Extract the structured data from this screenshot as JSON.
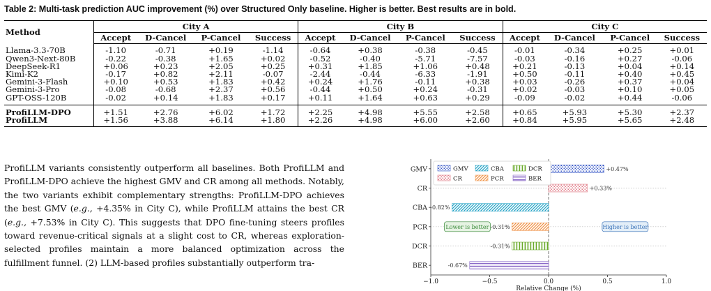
{
  "caption": "Table 2: Multi-task prediction AUC improvement (%) over Structured Only baseline. Higher is better. Best results are in bold.",
  "table": {
    "method_header": "Method",
    "cities": [
      "City A",
      "City B",
      "City C"
    ],
    "metrics": [
      "Accept",
      "D-Cancel",
      "P-Cancel",
      "Success"
    ],
    "baseline_rows": [
      {
        "method": "Llama-3.3-70B",
        "values": [
          "-1.10",
          "-0.71",
          "+0.19",
          "-1.14",
          "-0.64",
          "+0.38",
          "-0.38",
          "-0.45",
          "-0.01",
          "-0.34",
          "+0.25",
          "+0.01"
        ]
      },
      {
        "method": "Qwen3-Next-80B",
        "values": [
          "-0.22",
          "-0.38",
          "+1.65",
          "+0.02",
          "-0.52",
          "-0.40",
          "-5.71",
          "-7.57",
          "-0.03",
          "-0.16",
          "+0.27",
          "-0.06"
        ]
      },
      {
        "method": "DeepSeek-R1",
        "values": [
          "+0.06",
          "+0.23",
          "+2.05",
          "+0.25",
          "+0.31",
          "+1.85",
          "+1.06",
          "+0.48",
          "+0.21",
          "-0.13",
          "+0.04",
          "+0.14"
        ]
      },
      {
        "method": "Kimi-K2",
        "values": [
          "-0.17",
          "+0.82",
          "+2.11",
          "-0.07",
          "-2.44",
          "-0.44",
          "-6.33",
          "-1.91",
          "+0.50",
          "-0.11",
          "+0.40",
          "+0.45"
        ]
      },
      {
        "method": "Gemini-3-Flash",
        "values": [
          "+0.10",
          "+0.53",
          "+1.83",
          "+0.42",
          "+0.24",
          "+1.76",
          "-0.11",
          "+0.38",
          "+0.03",
          "-0.26",
          "+0.37",
          "+0.04"
        ]
      },
      {
        "method": "Gemini-3-Pro",
        "values": [
          "-0.08",
          "-0.68",
          "+2.37",
          "+0.56",
          "-0.44",
          "+0.50",
          "+0.24",
          "-0.31",
          "+0.02",
          "-0.03",
          "+0.10",
          "+0.05"
        ]
      },
      {
        "method": "GPT-OSS-120B",
        "values": [
          "-0.02",
          "+0.14",
          "+1.83",
          "+0.17",
          "+0.11",
          "+1.64",
          "+0.63",
          "+0.29",
          "-0.09",
          "-0.02",
          "+0.44",
          "-0.06"
        ]
      }
    ],
    "ours_rows": [
      {
        "method": "ProfiLLM-DPO",
        "values": [
          "+1.51",
          "+2.76",
          "+6.02",
          "+1.72",
          "+2.25",
          "+4.98",
          "+5.55",
          "+2.58",
          "+0.65",
          "+5.93",
          "+5.30",
          "+2.37"
        ]
      },
      {
        "method": "ProfiLLM",
        "values": [
          "+1.56",
          "+3.88",
          "+6.14",
          "+1.80",
          "+2.26",
          "+4.98",
          "+6.00",
          "+2.60",
          "+0.84",
          "+5.95",
          "+5.65",
          "+2.48"
        ]
      }
    ]
  },
  "body": {
    "p1": "ProfiLLM variants consistently outperform all baselines. Both ProfiLLM and ProfiLLM-DPO achieve the highest GMV and CR among all methods. Notably, the two variants exhibit complementary strengths: ProfiLLM-DPO achieves the best GMV (",
    "eg1": "e.g.,",
    "p2": " +4.35% in City C), while ProfiLLM attains the best CR (",
    "eg2": "e.g.,",
    "p3": " +7.53% in City C). This suggests that DPO fine-tuning steers profiles toward revenue-critical signals at a slight cost to CR, whereas exploration-selected profiles maintain a more balanced optimization across the fulfillment funnel. (2) LLM-based profiles substantially outperform tra-"
  },
  "chart_data": {
    "type": "bar",
    "orientation": "horizontal",
    "categories": [
      "GMV",
      "CR",
      "CBA",
      "PCR",
      "DCR",
      "BER"
    ],
    "values": [
      0.47,
      0.33,
      -0.82,
      -0.31,
      -0.31,
      -0.67
    ],
    "data_labels": [
      "+0.47%",
      "+0.33%",
      "-0.82%",
      "-0.31%",
      "-0.31%",
      "-0.67%"
    ],
    "xlabel": "Relative Change (%)",
    "ylabel": "",
    "xlim": [
      -1.0,
      1.0
    ],
    "xticks": [
      -1.0,
      -0.5,
      0.0,
      0.5,
      1.0
    ],
    "xtick_labels": [
      "−1.0",
      "−0.5",
      "0.0",
      "0.5",
      "1.0"
    ],
    "legend": {
      "placement": "top-left",
      "entries": [
        {
          "name": "GMV",
          "color": "#3b5bc8",
          "pattern": "dots"
        },
        {
          "name": "CBA",
          "color": "#2aa6c8",
          "pattern": "diagonal"
        },
        {
          "name": "DCR",
          "color": "#6aaa2a",
          "pattern": "vertical"
        },
        {
          "name": "CR",
          "color": "#e07a86",
          "pattern": "dots"
        },
        {
          "name": "PCR",
          "color": "#f0944a",
          "pattern": "diagonal"
        },
        {
          "name": "BER",
          "color": "#8a6ac8",
          "pattern": "horizontal"
        }
      ]
    },
    "bar_colors": [
      "#3b5bc8",
      "#e07a86",
      "#2aa6c8",
      "#f0944a",
      "#6aaa2a",
      "#8a6ac8"
    ],
    "annotations": [
      {
        "text": "Lower is better",
        "color": "#3a8a3a",
        "bg": "#e6f3e3"
      },
      {
        "text": "Higher is better",
        "color": "#3a72b8",
        "bg": "#e3eef8"
      }
    ],
    "grid": false
  }
}
